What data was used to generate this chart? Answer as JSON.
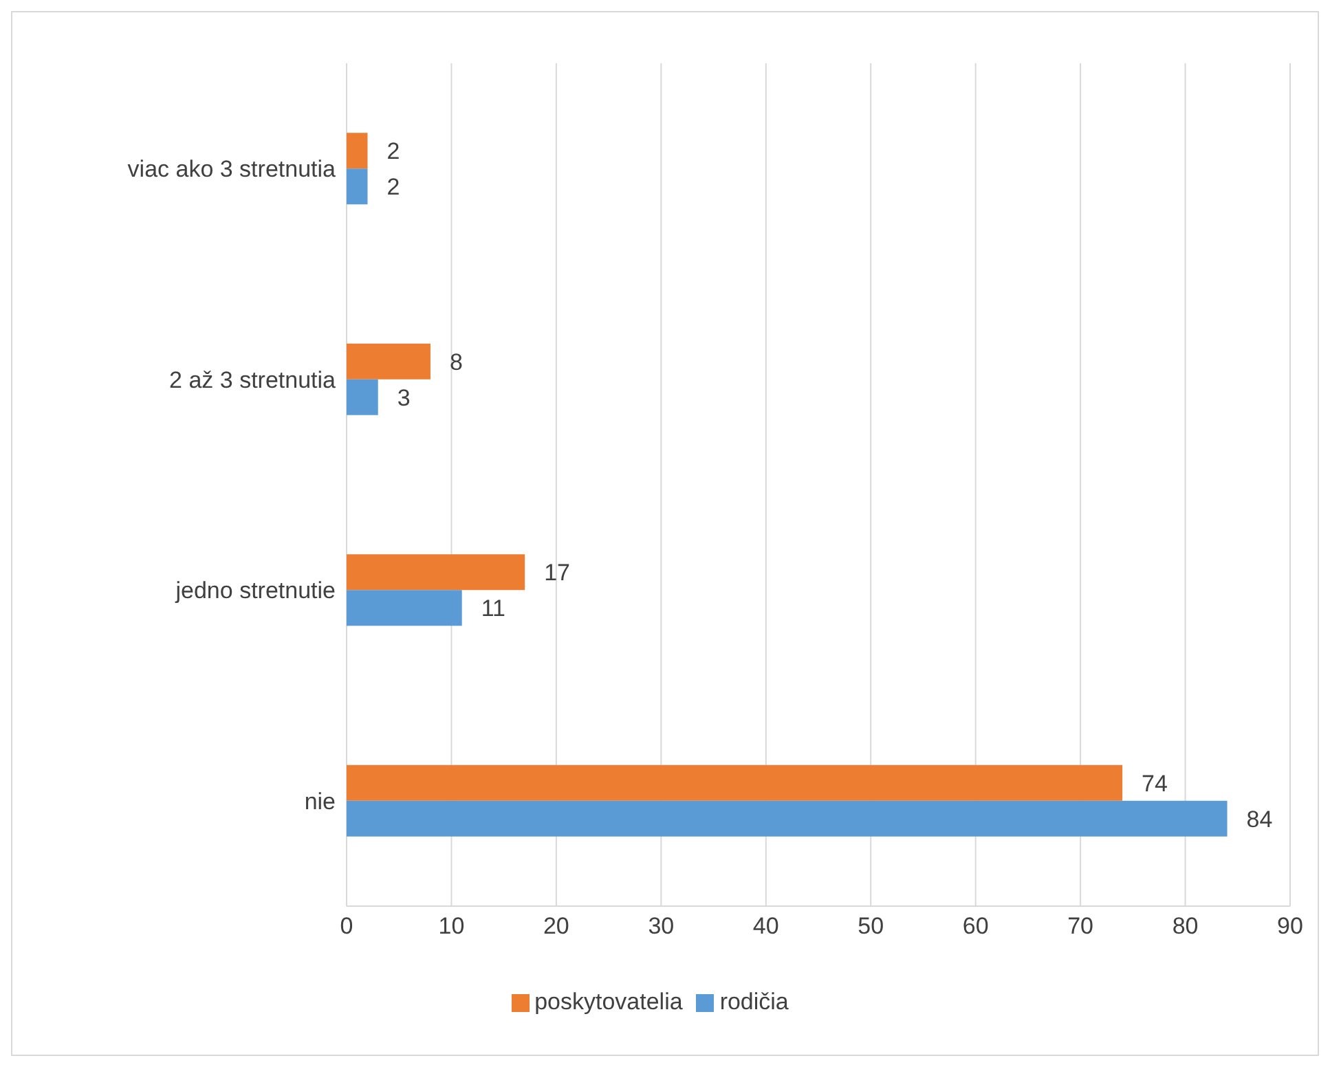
{
  "chart_data": {
    "type": "bar",
    "orientation": "horizontal",
    "categories": [
      "viac ako 3 stretnutia",
      "2 až 3 stretnutia",
      "jedno stretnutie",
      "nie"
    ],
    "series": [
      {
        "name": "poskytovatelia",
        "color": "#ed7d31",
        "values": [
          2,
          8,
          17,
          74
        ]
      },
      {
        "name": "rodičia",
        "color": "#5b9bd5",
        "values": [
          2,
          3,
          11,
          84
        ]
      }
    ],
    "xlim": [
      0,
      90
    ],
    "xticks": [
      0,
      10,
      20,
      30,
      40,
      50,
      60,
      70,
      80,
      90
    ],
    "grid": "x",
    "legend": "bottom",
    "data_labels": true
  }
}
